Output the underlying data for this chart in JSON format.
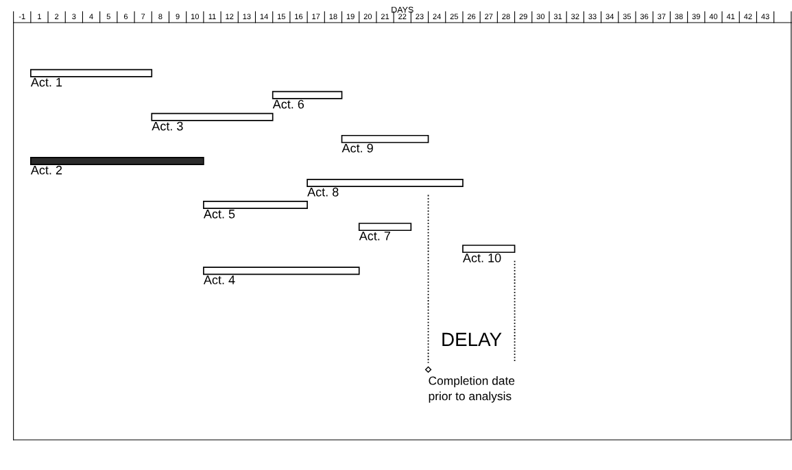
{
  "chart_data": {
    "type": "bar",
    "orientation": "horizontal",
    "xlabel": "DAYS",
    "categories": [
      null,
      null,
      null,
      null,
      null,
      null,
      null,
      null,
      null,
      null
    ],
    "values": [
      7,
      4,
      7,
      5,
      10,
      9,
      6,
      3,
      3,
      9
    ],
    "base": [
      0,
      14,
      7,
      18,
      0,
      16,
      10,
      19,
      25,
      10
    ],
    "colors": [
      "#ffffff",
      "#ffffff",
      "#ffffff",
      "#ffffff",
      "#2b2b2b",
      "#ffffff",
      "#ffffff",
      "#ffffff",
      "#ffffff",
      "#ffffff"
    ],
    "xlim": [
      -1,
      44
    ],
    "xticks": [
      {
        "value": -0.5,
        "label": "-1"
      },
      {
        "value": 0.5,
        "label": "1"
      },
      {
        "value": 1.5,
        "label": "2"
      },
      {
        "value": 2.5,
        "label": "3"
      },
      {
        "value": 3.5,
        "label": "4"
      },
      {
        "value": 4.5,
        "label": "5"
      },
      {
        "value": 5.5,
        "label": "6"
      },
      {
        "value": 6.5,
        "label": "7"
      },
      {
        "value": 7.5,
        "label": "8"
      },
      {
        "value": 8.5,
        "label": "9"
      },
      {
        "value": 9.5,
        "label": "10"
      },
      {
        "value": 10.5,
        "label": "11"
      },
      {
        "value": 11.5,
        "label": "12"
      },
      {
        "value": 12.5,
        "label": "13"
      },
      {
        "value": 13.5,
        "label": "14"
      },
      {
        "value": 14.5,
        "label": "15"
      },
      {
        "value": 15.5,
        "label": "16"
      },
      {
        "value": 16.5,
        "label": "17"
      },
      {
        "value": 17.5,
        "label": "18"
      },
      {
        "value": 18.5,
        "label": "19"
      },
      {
        "value": 19.5,
        "label": "20"
      },
      {
        "value": 20.5,
        "label": "21"
      },
      {
        "value": 21.5,
        "label": "22"
      },
      {
        "value": 22.5,
        "label": "23"
      },
      {
        "value": 23.5,
        "label": "24"
      },
      {
        "value": 24.5,
        "label": "25"
      },
      {
        "value": 25.5,
        "label": "26"
      },
      {
        "value": 26.5,
        "label": "27"
      },
      {
        "value": 27.5,
        "label": "28"
      },
      {
        "value": 28.5,
        "label": "29"
      },
      {
        "value": 29.5,
        "label": "30"
      },
      {
        "value": 30.5,
        "label": "31"
      },
      {
        "value": 31.5,
        "label": "32"
      },
      {
        "value": 32.5,
        "label": "33"
      },
      {
        "value": 33.5,
        "label": "34"
      },
      {
        "value": 34.5,
        "label": "35"
      },
      {
        "value": 35.5,
        "label": "36"
      },
      {
        "value": 36.5,
        "label": "37"
      },
      {
        "value": 37.5,
        "label": "38"
      },
      {
        "value": 38.5,
        "label": "39"
      },
      {
        "value": 39.5,
        "label": "40"
      },
      {
        "value": 40.5,
        "label": "41"
      },
      {
        "value": 41.5,
        "label": "42"
      },
      {
        "value": 42.5,
        "label": "43"
      }
    ],
    "ref_lines": [
      {
        "axis": "x",
        "value": 23,
        "label": "Completion date\nprior to analysis",
        "line_style": "dotted",
        "color": "#000000"
      },
      {
        "axis": "x",
        "value": 28,
        "label": null,
        "line_style": "dotted",
        "color": "#000000"
      }
    ],
    "annotations": [
      "Act. 1",
      "Act. 6",
      "Act. 3",
      "Act. 9",
      "Act. 2",
      "Act. 8",
      "Act. 5",
      "Act. 7",
      "Act. 10",
      "Act. 4",
      "DELAY"
    ],
    "grid": false
  }
}
